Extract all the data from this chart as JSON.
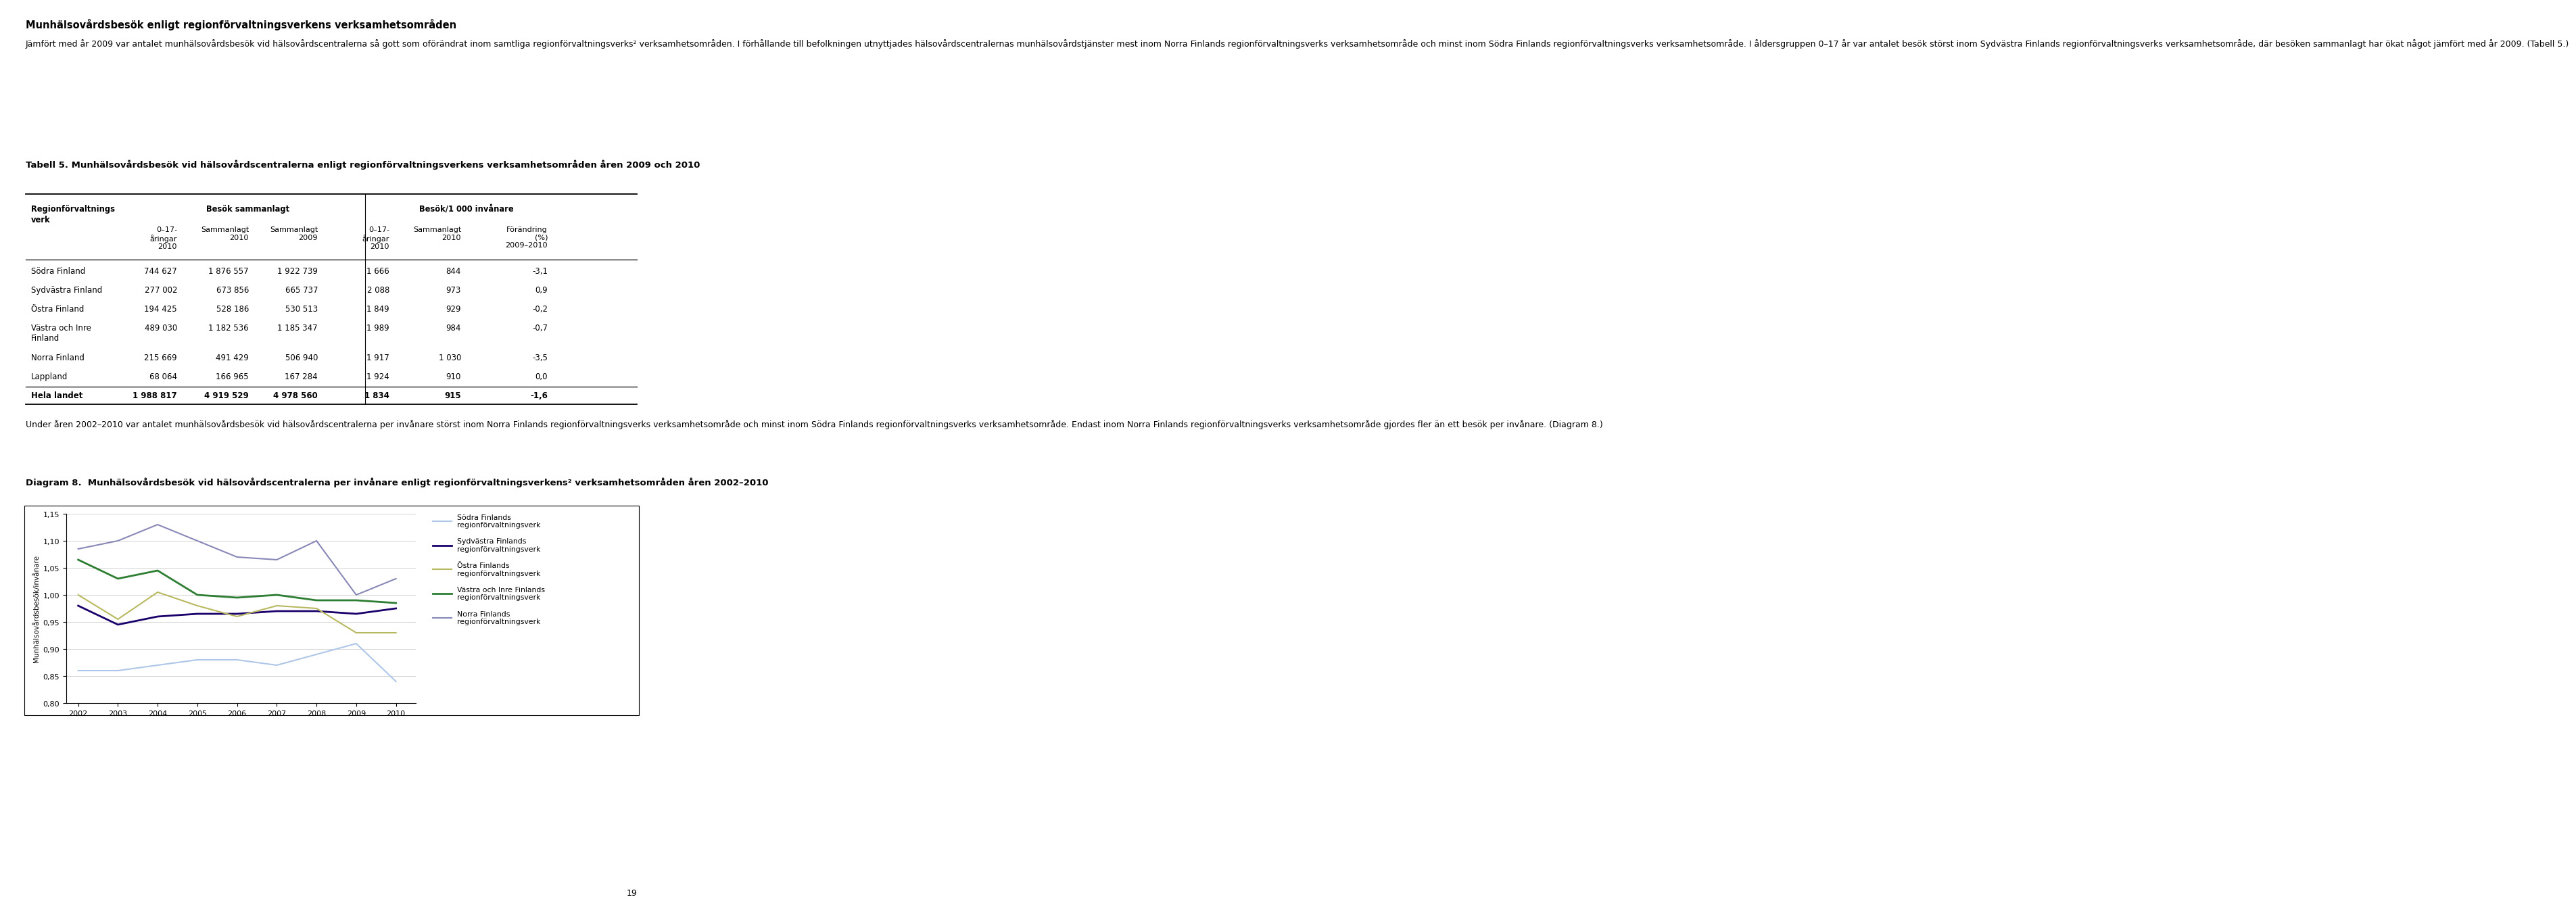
{
  "title_main": "Munhälsovårdsbesök enligt regionförvaltningsverkens verksamhetsområden",
  "para1": "Jämfört med år 2009 var antalet munhälsovårdsbesök vid hälsovårdscentralerna så gott som oförändrat inom samtliga regionförvaltningsverks² verksamhetsområden. I förhållande till befolkningen utnyttjades hälsovårdscentralernas munhälsovårdstjänster mest inom Norra Finlands regionförvaltningsverks verksamhetsområde och minst inom Södra Finlands regionförvaltningsverks verksamhetsområde. I åldersgruppen 0–17 år var antalet besök störst inom Sydvästra Finlands regionförvaltningsverks verksamhetsområde, där besöken sammanlagt har ökat något jämfört med år 2009. (Tabell 5.)",
  "table_title": "Tabell 5. Munhälsovårdsbesök vid hälsovårdscentralerna enligt regionförvaltningsverkens verksamhetsområden åren 2009 och 2010",
  "rows": [
    [
      "Södra Finland",
      "744 627",
      "1 876 557",
      "1 922 739",
      "1 666",
      "844",
      "-3,1"
    ],
    [
      "Sydvästra Finland",
      "277 002",
      "673 856",
      "665 737",
      "2 088",
      "973",
      "0,9"
    ],
    [
      "Östra Finland",
      "194 425",
      "528 186",
      "530 513",
      "1 849",
      "929",
      "-0,2"
    ],
    [
      "Västra och Inre\nFinland",
      "489 030",
      "1 182 536",
      "1 185 347",
      "1 989",
      "984",
      "-0,7"
    ],
    [
      "Norra Finland",
      "215 669",
      "491 429",
      "506 940",
      "1 917",
      "1 030",
      "-3,5"
    ],
    [
      "Lappland",
      "68 064",
      "166 965",
      "167 284",
      "1 924",
      "910",
      "0,0"
    ],
    [
      "Hela landet",
      "1 988 817",
      "4 919 529",
      "4 978 560",
      "1 834",
      "915",
      "-1,6"
    ]
  ],
  "para2": "Under åren 2002–2010 var antalet munhälsovårdsbesök vid hälsovårdscentralerna per invånare störst inom Norra Finlands regionförvaltningsverks verksamhetsområde och minst inom Södra Finlands regionförvaltningsverks verksamhetsområde. Endast inom Norra Finlands regionförvaltningsverks verksamhetsområde gjordes fler än ett besök per invånare. (Diagram 8.)",
  "diagram_title_part1": "Diagram 8.",
  "diagram_title_part2": "Munhälsovårdsbesök vid hälsovårdscentralerna per invånare enligt regionförvaltningsverkens² verksamhetsområden åren 2002–2010",
  "years": [
    2002,
    2003,
    2004,
    2005,
    2006,
    2007,
    2008,
    2009,
    2010
  ],
  "series_names": [
    "Södra Finlands\nregionförvaltningsverk",
    "Sydvästra Finlands\nregionförvaltningsverk",
    "Östra Finlands\nregionförvaltningsverk",
    "Västra och Inre Finlands\nregionförvaltningsverk",
    "Norra Finlands\nregionförvaltningsverk"
  ],
  "series_colors": [
    "#aec6e8",
    "#1a006b",
    "#b8b860",
    "#2d7d32",
    "#8888b8"
  ],
  "series_values": [
    [
      0.86,
      0.86,
      0.87,
      0.88,
      0.88,
      0.87,
      0.89,
      0.91,
      0.84
    ],
    [
      0.98,
      0.945,
      0.96,
      0.965,
      0.965,
      0.97,
      0.97,
      0.965,
      0.975
    ],
    [
      1.0,
      0.955,
      1.005,
      0.98,
      0.96,
      0.98,
      0.975,
      0.93,
      0.93
    ],
    [
      1.065,
      1.03,
      1.045,
      1.0,
      0.995,
      1.0,
      0.99,
      0.99,
      0.985
    ],
    [
      1.085,
      1.1,
      1.13,
      1.1,
      1.07,
      1.065,
      1.1,
      1.0,
      1.03
    ]
  ],
  "series_lw": [
    1.5,
    2.0,
    1.5,
    2.0,
    1.5
  ],
  "ylim": [
    0.8,
    1.15
  ],
  "yticks": [
    0.8,
    0.85,
    0.9,
    0.95,
    1.0,
    1.05,
    1.1,
    1.15
  ],
  "page_number": "19",
  "bg_color": "#ffffff"
}
